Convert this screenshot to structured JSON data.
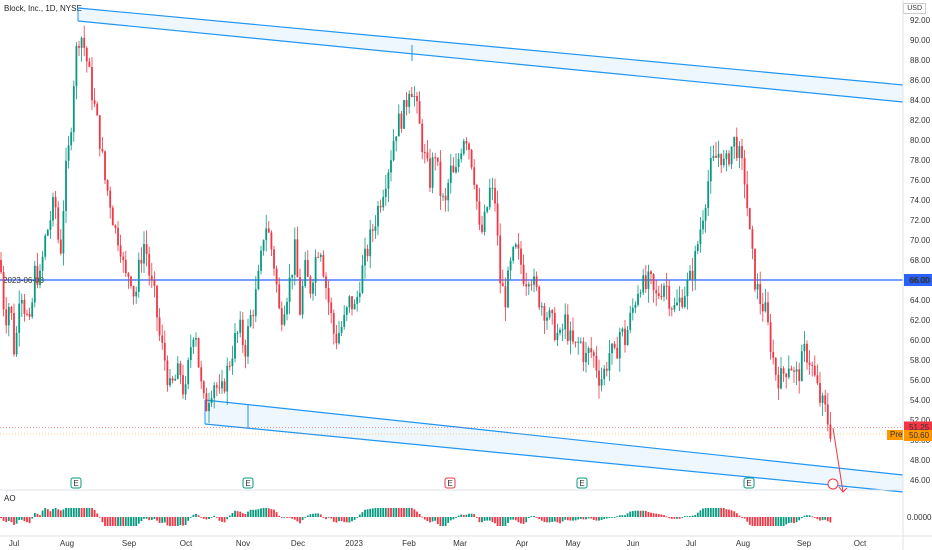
{
  "header": {
    "title": "Block, Inc., 1D, NYSE"
  },
  "currency": "USD",
  "ao_label": "AO",
  "horizontal_line_label": "2023-06-08",
  "chart_data": {
    "type": "candlestick",
    "title": "Block, Inc., 1D, NYSE",
    "x_labels": [
      "Jul",
      "Aug",
      "Sep",
      "Oct",
      "Nov",
      "Dec",
      "2023",
      "Feb",
      "Mar",
      "Apr",
      "May",
      "Jun",
      "Jul",
      "Aug",
      "Sep",
      "Oct"
    ],
    "y_ticks": [
      "92.00",
      "90.00",
      "88.00",
      "86.00",
      "84.00",
      "82.00",
      "80.00",
      "78.00",
      "76.00",
      "74.00",
      "72.00",
      "70.00",
      "68.00",
      "66.00",
      "64.00",
      "62.00",
      "60.00",
      "58.00",
      "56.00",
      "54.00",
      "52.00",
      "50.00",
      "48.00",
      "46.00"
    ],
    "ylim": [
      45.0,
      94.0
    ],
    "price_path": [
      [
        0,
        68
      ],
      [
        5,
        62
      ],
      [
        10,
        64
      ],
      [
        15,
        58
      ],
      [
        20,
        66
      ],
      [
        25,
        63
      ],
      [
        30,
        61
      ],
      [
        35,
        67
      ],
      [
        40,
        66
      ],
      [
        45,
        70
      ],
      [
        50,
        72
      ],
      [
        55,
        74
      ],
      [
        60,
        68
      ],
      [
        65,
        76
      ],
      [
        70,
        80
      ],
      [
        75,
        88
      ],
      [
        80,
        91
      ],
      [
        85,
        89
      ],
      [
        90,
        86
      ],
      [
        95,
        83
      ],
      [
        100,
        80
      ],
      [
        105,
        76
      ],
      [
        110,
        74
      ],
      [
        115,
        71
      ],
      [
        120,
        70
      ],
      [
        125,
        66
      ],
      [
        130,
        67
      ],
      [
        135,
        64
      ],
      [
        140,
        68
      ],
      [
        145,
        70
      ],
      [
        150,
        66
      ],
      [
        155,
        64
      ],
      [
        160,
        60
      ],
      [
        165,
        58
      ],
      [
        170,
        55
      ],
      [
        175,
        56
      ],
      [
        180,
        57
      ],
      [
        185,
        54
      ],
      [
        190,
        59
      ],
      [
        195,
        62
      ],
      [
        200,
        56
      ],
      [
        205,
        53
      ],
      [
        210,
        55
      ],
      [
        215,
        56
      ],
      [
        220,
        54
      ],
      [
        225,
        56
      ],
      [
        230,
        58
      ],
      [
        235,
        60
      ],
      [
        240,
        61
      ],
      [
        245,
        59
      ],
      [
        250,
        62
      ],
      [
        255,
        64
      ],
      [
        260,
        67
      ],
      [
        265,
        72
      ],
      [
        270,
        70
      ],
      [
        275,
        67
      ],
      [
        280,
        62
      ],
      [
        285,
        64
      ],
      [
        290,
        66
      ],
      [
        295,
        69
      ],
      [
        300,
        63
      ],
      [
        305,
        67
      ],
      [
        310,
        65
      ],
      [
        315,
        68
      ],
      [
        320,
        70
      ],
      [
        325,
        66
      ],
      [
        330,
        63
      ],
      [
        335,
        60
      ],
      [
        340,
        61
      ],
      [
        345,
        62
      ],
      [
        350,
        64
      ],
      [
        355,
        63
      ],
      [
        360,
        66
      ],
      [
        365,
        68
      ],
      [
        370,
        70
      ],
      [
        375,
        72
      ],
      [
        380,
        74
      ],
      [
        385,
        76
      ],
      [
        390,
        78
      ],
      [
        395,
        81
      ],
      [
        400,
        82
      ],
      [
        405,
        83
      ],
      [
        410,
        86
      ],
      [
        415,
        84
      ],
      [
        420,
        81
      ],
      [
        425,
        78
      ],
      [
        430,
        76
      ],
      [
        435,
        79
      ],
      [
        440,
        75
      ],
      [
        445,
        73
      ],
      [
        450,
        77
      ],
      [
        455,
        76
      ],
      [
        460,
        79
      ],
      [
        465,
        81
      ],
      [
        470,
        79
      ],
      [
        475,
        76
      ],
      [
        480,
        70
      ],
      [
        485,
        72
      ],
      [
        490,
        75
      ],
      [
        495,
        74
      ],
      [
        500,
        66
      ],
      [
        505,
        64
      ],
      [
        510,
        67
      ],
      [
        515,
        69
      ],
      [
        520,
        68
      ],
      [
        525,
        66
      ],
      [
        530,
        67
      ],
      [
        535,
        65
      ],
      [
        540,
        64
      ],
      [
        545,
        63
      ],
      [
        550,
        62
      ],
      [
        555,
        61
      ],
      [
        560,
        60
      ],
      [
        565,
        62
      ],
      [
        570,
        60
      ],
      [
        575,
        59
      ],
      [
        580,
        60
      ],
      [
        585,
        58
      ],
      [
        590,
        59
      ],
      [
        595,
        58
      ],
      [
        600,
        56
      ],
      [
        605,
        57
      ],
      [
        610,
        59
      ],
      [
        615,
        58
      ],
      [
        620,
        61
      ],
      [
        625,
        60
      ],
      [
        630,
        62
      ],
      [
        635,
        64
      ],
      [
        640,
        66
      ],
      [
        645,
        65
      ],
      [
        650,
        66
      ],
      [
        655,
        64
      ],
      [
        660,
        65
      ],
      [
        665,
        66
      ],
      [
        670,
        64
      ],
      [
        675,
        63
      ],
      [
        680,
        64
      ],
      [
        685,
        65
      ],
      [
        690,
        66
      ],
      [
        695,
        68
      ],
      [
        700,
        71
      ],
      [
        705,
        74
      ],
      [
        710,
        77
      ],
      [
        715,
        78
      ],
      [
        720,
        79
      ],
      [
        725,
        77
      ],
      [
        730,
        79
      ],
      [
        735,
        80
      ],
      [
        740,
        78
      ],
      [
        745,
        76
      ],
      [
        750,
        70
      ],
      [
        755,
        66
      ],
      [
        760,
        64
      ],
      [
        765,
        63
      ],
      [
        770,
        60
      ],
      [
        775,
        57
      ],
      [
        780,
        56
      ],
      [
        785,
        57
      ],
      [
        790,
        58
      ],
      [
        795,
        56
      ],
      [
        800,
        57
      ],
      [
        805,
        59
      ],
      [
        810,
        58
      ],
      [
        815,
        56
      ],
      [
        820,
        54
      ],
      [
        825,
        53
      ],
      [
        830,
        51
      ]
    ],
    "channel": {
      "upper_a": [
        [
          78,
          93.2
        ],
        [
          903,
          85.5
        ]
      ],
      "upper_b": [
        [
          78,
          91.9
        ],
        [
          903,
          83.8
        ]
      ],
      "lower_a": [
        [
          205,
          54.0
        ],
        [
          903,
          46.5
        ]
      ],
      "lower_b": [
        [
          205,
          51.6
        ],
        [
          903,
          44.8
        ]
      ]
    },
    "horizontal_level": 66.0,
    "last_price": "51.25",
    "pre_price": "50.60",
    "pre_label": "Pre",
    "projection": [
      [
        833,
        51.2
      ],
      [
        843,
        44.8
      ]
    ],
    "earnings_markers": [
      {
        "x": 76,
        "label": "E",
        "color": "#089981"
      },
      {
        "x": 248,
        "label": "E",
        "color": "#089981"
      },
      {
        "x": 450,
        "label": "E",
        "color": "#f23645"
      },
      {
        "x": 582,
        "label": "E",
        "color": "#089981"
      },
      {
        "x": 749,
        "label": "E",
        "color": "#089981"
      }
    ],
    "ao_zero_label": "0.0000"
  }
}
